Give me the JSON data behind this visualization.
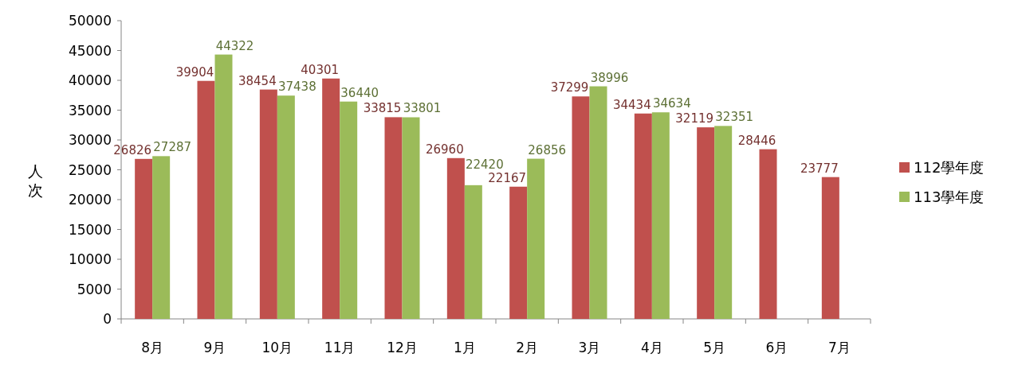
{
  "chart_data": {
    "type": "bar",
    "ylabel": "人次",
    "categories": [
      "8月",
      "9月",
      "10月",
      "11月",
      "12月",
      "1月",
      "2月",
      "3月",
      "4月",
      "5月",
      "6月",
      "7月"
    ],
    "series": [
      {
        "name": "112學年度",
        "color": "#c0504d",
        "values": [
          26826,
          39904,
          38454,
          40301,
          33815,
          26960,
          22167,
          37299,
          34434,
          32119,
          28446,
          23777
        ]
      },
      {
        "name": "113學年度",
        "color": "#9bbb59",
        "values": [
          27287,
          44322,
          37438,
          36440,
          33801,
          22420,
          26856,
          38996,
          34634,
          32351,
          null,
          null
        ]
      }
    ],
    "ylim": [
      0,
      50000
    ],
    "yticks": [
      0,
      5000,
      10000,
      15000,
      20000,
      25000,
      30000,
      35000,
      40000,
      45000,
      50000
    ],
    "data_labels": true,
    "legend": "right"
  }
}
